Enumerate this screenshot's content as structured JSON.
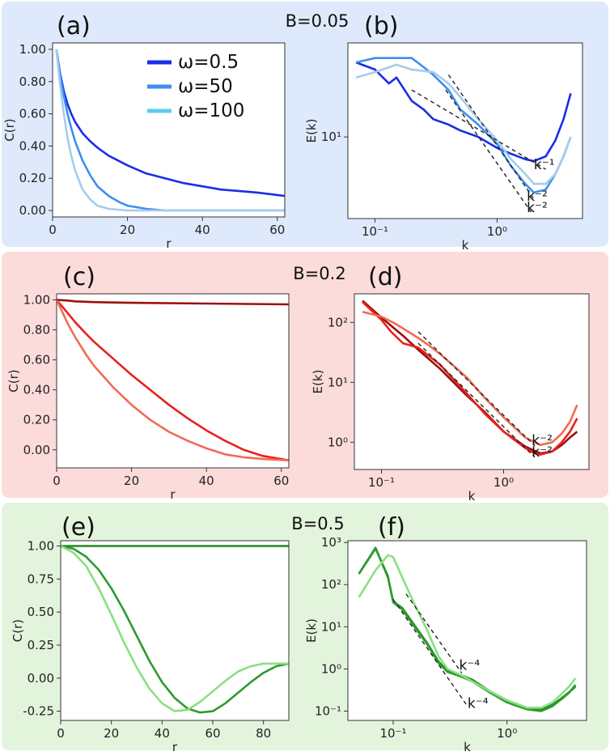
{
  "rows": [
    {
      "title": "B=0.05",
      "background": "#deeafb"
    },
    {
      "title": "B=0.2",
      "background": "#fcdcdb"
    },
    {
      "title": "B=0.5",
      "background": "#e3f4dd"
    }
  ],
  "chart_data": [
    {
      "panel": "(a)",
      "type": "line",
      "xlabel": "r",
      "ylabel": "C(r)",
      "xlim": [
        0,
        62
      ],
      "ylim": [
        -0.04,
        1.04
      ],
      "xticks": [
        0,
        20,
        40,
        60
      ],
      "xtick_labels": [
        "0",
        "20",
        "40",
        "60"
      ],
      "yticks": [
        0,
        0.2,
        0.4,
        0.6,
        0.8,
        1.0
      ],
      "ytick_labels": [
        "0.00",
        "0.20",
        "0.40",
        "0.60",
        "0.80",
        "1.00"
      ],
      "legend_position": "top-right",
      "series": [
        {
          "name": "ω=0.5",
          "color": "#1a2ee6",
          "x": [
            1,
            2,
            3,
            4,
            5,
            6,
            8,
            10,
            12,
            15,
            20,
            25,
            30,
            35,
            40,
            45,
            50,
            55,
            62
          ],
          "y": [
            1.0,
            0.85,
            0.74,
            0.66,
            0.6,
            0.55,
            0.48,
            0.43,
            0.39,
            0.34,
            0.28,
            0.23,
            0.2,
            0.17,
            0.15,
            0.13,
            0.12,
            0.11,
            0.09
          ]
        },
        {
          "name": "ω=50",
          "color": "#3d8ef0",
          "x": [
            1,
            2,
            3,
            4,
            5,
            6,
            8,
            10,
            12,
            15,
            18,
            20,
            25,
            30,
            40,
            50,
            62
          ],
          "y": [
            1.0,
            0.84,
            0.71,
            0.6,
            0.51,
            0.43,
            0.31,
            0.22,
            0.15,
            0.09,
            0.05,
            0.03,
            0.01,
            0.0,
            0.0,
            0.0,
            0.0
          ]
        },
        {
          "name": "ω=100",
          "color": "#a6ccea",
          "x": [
            1,
            2,
            3,
            4,
            5,
            6,
            8,
            10,
            12,
            15,
            20,
            30,
            40,
            50,
            62
          ],
          "y": [
            1.0,
            0.78,
            0.6,
            0.45,
            0.34,
            0.25,
            0.13,
            0.07,
            0.03,
            0.01,
            0.0,
            0.0,
            0.0,
            0.0,
            0.0
          ]
        }
      ],
      "legend_colors": [
        "#1a2ee6",
        "#3d8ef0",
        "#5ccde6"
      ]
    },
    {
      "panel": "(b)",
      "type": "line",
      "xscale": "log",
      "yscale": "log",
      "xlabel": "k",
      "ylabel": "E(k)",
      "xlim": [
        0.06,
        5
      ],
      "ylim": [
        3,
        40
      ],
      "xticks": [
        0.1,
        1
      ],
      "xtick_labels": [
        "10⁻¹",
        "10⁰"
      ],
      "yticks": [
        10
      ],
      "ytick_labels": [
        "10¹"
      ],
      "series": [
        {
          "name": "ω=0.5",
          "color": "#1a2ee6",
          "x": [
            0.07,
            0.1,
            0.13,
            0.15,
            0.2,
            0.25,
            0.3,
            0.4,
            0.5,
            0.7,
            1.0,
            1.3,
            1.7,
            2.0,
            2.5,
            3.0,
            3.5,
            4.0
          ],
          "y": [
            30,
            27,
            22,
            24,
            17,
            15,
            13,
            12,
            11,
            10,
            8.5,
            7.8,
            7.2,
            7.0,
            7.5,
            9.5,
            13,
            19
          ]
        },
        {
          "name": "ω=50",
          "color": "#3d8ef0",
          "x": [
            0.07,
            0.1,
            0.13,
            0.2,
            0.25,
            0.3,
            0.4,
            0.5,
            0.7,
            1.0,
            1.3,
            1.7,
            2.0,
            2.5,
            3.0,
            3.5,
            4.0
          ],
          "y": [
            30,
            32,
            32,
            32,
            28,
            25,
            20,
            15,
            12,
            9,
            6.5,
            5.0,
            4.4,
            4.6,
            5.8,
            7.5,
            10
          ]
        },
        {
          "name": "ω=100",
          "color": "#a6ccea",
          "x": [
            0.07,
            0.1,
            0.15,
            0.2,
            0.3,
            0.4,
            0.5,
            0.7,
            1.0,
            1.3,
            1.7,
            2.0,
            2.5,
            3.0,
            3.5,
            4.0
          ],
          "y": [
            24,
            26,
            29,
            27,
            26,
            22,
            18,
            13,
            9.5,
            7.2,
            5.8,
            5.0,
            5.0,
            5.8,
            7.5,
            10
          ]
        }
      ],
      "annotations": [
        {
          "text": "k⁻¹",
          "x": [
            0.2,
            2.5
          ],
          "y": [
            20,
            6.2
          ],
          "tx": 2.0,
          "ty": 6.2
        },
        {
          "text": "k⁻²",
          "x": [
            0.4,
            2.0
          ],
          "y": [
            25,
            4.0
          ],
          "tx": 1.75,
          "ty": 3.9
        },
        {
          "text": "k⁻²",
          "x": [
            0.38,
            1.9
          ],
          "y": [
            20,
            3.3
          ],
          "tx": 1.75,
          "ty": 3.3
        }
      ]
    },
    {
      "panel": "(c)",
      "type": "line",
      "xlabel": "r",
      "ylabel": "C(r)",
      "xlim": [
        0,
        62
      ],
      "ylim": [
        -0.12,
        1.04
      ],
      "xticks": [
        0,
        20,
        40,
        60
      ],
      "xtick_labels": [
        "0",
        "20",
        "40",
        "60"
      ],
      "yticks": [
        0,
        0.2,
        0.4,
        0.6,
        0.8,
        1.0
      ],
      "ytick_labels": [
        "0.00",
        "0.20",
        "0.40",
        "0.60",
        "0.80",
        "1.00"
      ],
      "legend_position": "top-right",
      "series": [
        {
          "name": "ω=0.5",
          "color": "#9c0f0f",
          "x": [
            0,
            3,
            5,
            10,
            20,
            40,
            62
          ],
          "y": [
            1.0,
            0.995,
            0.99,
            0.985,
            0.98,
            0.975,
            0.97
          ]
        },
        {
          "name": "ω=50",
          "color": "#e8211e",
          "x": [
            0,
            3,
            5,
            8,
            10,
            15,
            20,
            25,
            30,
            35,
            40,
            45,
            50,
            55,
            62
          ],
          "y": [
            1.0,
            0.91,
            0.85,
            0.77,
            0.72,
            0.61,
            0.5,
            0.4,
            0.3,
            0.21,
            0.13,
            0.06,
            0.0,
            -0.04,
            -0.07
          ]
        },
        {
          "name": "ω=100",
          "color": "#f36a55",
          "x": [
            0,
            3,
            5,
            8,
            10,
            15,
            20,
            25,
            30,
            35,
            40,
            45,
            50,
            55,
            62
          ],
          "y": [
            1.0,
            0.84,
            0.75,
            0.63,
            0.56,
            0.42,
            0.3,
            0.2,
            0.12,
            0.06,
            0.01,
            -0.03,
            -0.05,
            -0.06,
            -0.07
          ]
        }
      ]
    },
    {
      "panel": "(d)",
      "type": "line",
      "xscale": "log",
      "yscale": "log",
      "xlabel": "k",
      "ylabel": "E(k)",
      "xlim": [
        0.06,
        5
      ],
      "ylim": [
        0.35,
        300
      ],
      "xticks": [
        0.1,
        1
      ],
      "xtick_labels": [
        "10⁻¹",
        "10⁰"
      ],
      "yticks": [
        1,
        10,
        100
      ],
      "ytick_labels": [
        "10⁰",
        "10¹",
        "10²"
      ],
      "series": [
        {
          "name": "ω=0.5",
          "color": "#9c0f0f",
          "x": [
            0.07,
            0.1,
            0.15,
            0.2,
            0.3,
            0.5,
            0.7,
            1.0,
            1.5,
            2.0,
            2.5,
            3.0,
            3.5,
            4.0
          ],
          "y": [
            230,
            120,
            60,
            35,
            17,
            6,
            3.2,
            1.5,
            0.85,
            0.65,
            0.7,
            0.9,
            1.2,
            1.5
          ]
        },
        {
          "name": "ω=50",
          "color": "#e8211e",
          "x": [
            0.07,
            0.1,
            0.12,
            0.15,
            0.2,
            0.3,
            0.5,
            0.7,
            1.0,
            1.5,
            1.8,
            2.0,
            2.5,
            3.0,
            3.5,
            4.0
          ],
          "y": [
            220,
            110,
            70,
            45,
            38,
            20,
            6.5,
            3.0,
            1.5,
            0.8,
            0.65,
            0.62,
            0.7,
            1.0,
            1.5,
            2.5
          ]
        },
        {
          "name": "ω=100",
          "color": "#f36a55",
          "x": [
            0.07,
            0.1,
            0.13,
            0.2,
            0.25,
            0.3,
            0.4,
            0.5,
            0.7,
            1.0,
            1.5,
            2.0,
            2.5,
            3.0,
            3.5,
            4.0
          ],
          "y": [
            150,
            125,
            95,
            55,
            40,
            30,
            18,
            12,
            5.5,
            2.6,
            1.2,
            0.9,
            1.0,
            1.4,
            2.2,
            4.2
          ]
        }
      ],
      "annotations": [
        {
          "text": "k⁻²",
          "x": [
            0.2,
            1.8
          ],
          "y": [
            70,
            0.87
          ],
          "tx": 1.7,
          "ty": 0.9
        },
        {
          "text": "k⁻²",
          "x": [
            0.2,
            1.8
          ],
          "y": [
            45,
            0.56
          ],
          "tx": 1.7,
          "ty": 0.58
        }
      ]
    },
    {
      "panel": "(e)",
      "type": "line",
      "xlabel": "r",
      "ylabel": "C(r)",
      "xlim": [
        0,
        90
      ],
      "ylim": [
        -0.32,
        1.04
      ],
      "xticks": [
        0,
        20,
        40,
        60,
        80
      ],
      "xtick_labels": [
        "0",
        "20",
        "40",
        "60",
        "80"
      ],
      "yticks": [
        -0.25,
        0,
        0.25,
        0.5,
        0.75,
        1.0
      ],
      "ytick_labels": [
        "-0.25",
        "0.00",
        "0.25",
        "0.50",
        "0.75",
        "1.00"
      ],
      "legend_position": "top-right",
      "series": [
        {
          "name": "ω=0.5",
          "color": "#1f8a1f",
          "x": [
            0,
            30,
            60,
            90
          ],
          "y": [
            1.0,
            1.0,
            1.0,
            1.0
          ]
        },
        {
          "name": "ω=50",
          "color": "#2e9a2e",
          "x": [
            0,
            5,
            10,
            15,
            20,
            25,
            30,
            35,
            40,
            45,
            50,
            55,
            60,
            65,
            70,
            75,
            80,
            85,
            90
          ],
          "y": [
            1.0,
            0.98,
            0.92,
            0.82,
            0.68,
            0.51,
            0.32,
            0.13,
            -0.03,
            -0.15,
            -0.23,
            -0.26,
            -0.25,
            -0.19,
            -0.11,
            -0.03,
            0.04,
            0.09,
            0.11
          ]
        },
        {
          "name": "ω=100",
          "color": "#8ae080",
          "x": [
            0,
            5,
            10,
            15,
            20,
            25,
            30,
            35,
            40,
            45,
            50,
            55,
            60,
            65,
            70,
            75,
            80,
            85,
            90
          ],
          "y": [
            1.0,
            0.95,
            0.85,
            0.68,
            0.48,
            0.27,
            0.08,
            -0.08,
            -0.19,
            -0.25,
            -0.24,
            -0.18,
            -0.1,
            -0.02,
            0.05,
            0.09,
            0.11,
            0.11,
            0.11
          ]
        }
      ],
      "legend_colors": [
        "#1f8a1f",
        "#6cd85c",
        "#a8ec9c"
      ]
    },
    {
      "panel": "(f)",
      "type": "line",
      "xscale": "log",
      "yscale": "log",
      "xlabel": "k",
      "ylabel": "E(k)",
      "xlim": [
        0.04,
        5
      ],
      "ylim": [
        0.06,
        1100
      ],
      "xticks": [
        0.1,
        1
      ],
      "xtick_labels": [
        "10⁻¹",
        "10⁰"
      ],
      "yticks": [
        0.1,
        1,
        10,
        100,
        1000
      ],
      "ytick_labels": [
        "10⁻¹",
        "10⁰",
        "10¹",
        "10²",
        "10³"
      ],
      "series": [
        {
          "name": "ω=0.5",
          "color": "#1f8a1f",
          "x": [
            0.05,
            0.07,
            0.09,
            0.1,
            0.12,
            0.15,
            0.2,
            0.25,
            0.3,
            0.4,
            0.5,
            0.7,
            1.0,
            1.5,
            2.0,
            2.5,
            3.0,
            3.5,
            4.0
          ],
          "y": [
            180,
            750,
            150,
            40,
            28,
            12,
            4,
            1.5,
            0.9,
            0.7,
            0.55,
            0.3,
            0.18,
            0.12,
            0.11,
            0.14,
            0.2,
            0.28,
            0.38
          ]
        },
        {
          "name": "ω=50",
          "color": "#2e9a2e",
          "x": [
            0.05,
            0.07,
            0.09,
            0.1,
            0.12,
            0.15,
            0.2,
            0.25,
            0.3,
            0.4,
            0.5,
            0.7,
            1.0,
            1.5,
            2.0,
            2.5,
            3.0,
            3.5,
            4.0
          ],
          "y": [
            180,
            720,
            160,
            38,
            26,
            11,
            3.8,
            1.4,
            0.85,
            0.65,
            0.5,
            0.28,
            0.16,
            0.11,
            0.1,
            0.13,
            0.19,
            0.27,
            0.42
          ]
        },
        {
          "name": "ω=100",
          "color": "#8ae080",
          "x": [
            0.05,
            0.07,
            0.09,
            0.1,
            0.12,
            0.15,
            0.2,
            0.25,
            0.3,
            0.4,
            0.5,
            0.7,
            1.0,
            1.5,
            2.0,
            2.5,
            3.0,
            3.5,
            4.0
          ],
          "y": [
            50,
            220,
            500,
            450,
            150,
            40,
            8,
            2,
            1.0,
            0.7,
            0.5,
            0.3,
            0.18,
            0.12,
            0.12,
            0.16,
            0.25,
            0.38,
            0.6
          ]
        }
      ],
      "annotations": [
        {
          "text": "k⁻⁴",
          "x": [
            0.13,
            0.4
          ],
          "y": [
            60,
            0.8
          ],
          "tx": 0.38,
          "ty": 0.95
        },
        {
          "text": "k⁻⁴",
          "x": [
            0.1,
            0.45
          ],
          "y": [
            45,
            0.13
          ],
          "tx": 0.45,
          "ty": 0.12
        }
      ]
    }
  ]
}
